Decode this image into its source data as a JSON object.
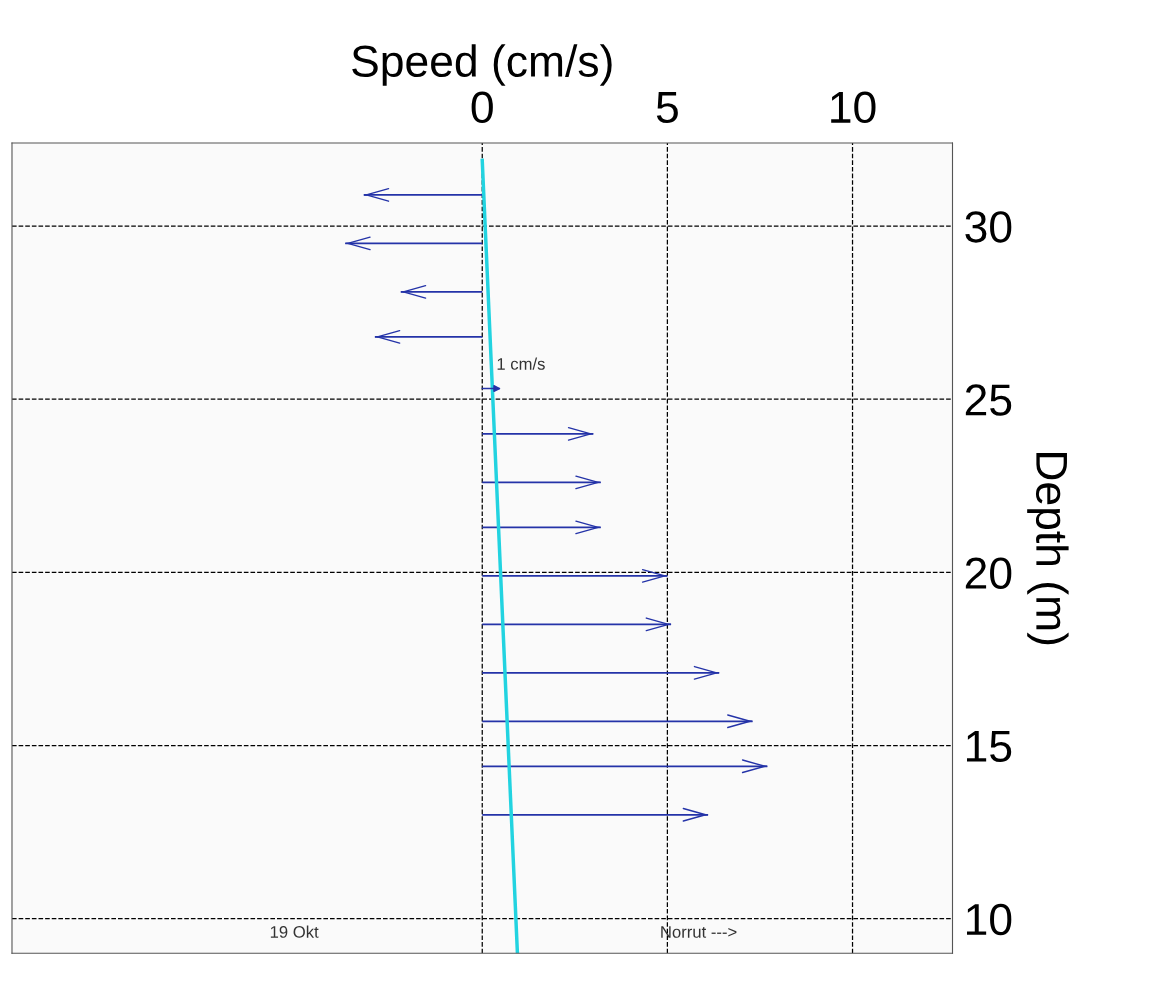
{
  "chart_data": {
    "type": "bar",
    "orientation": "horizontal",
    "xlabel": "Speed (cm/s)",
    "ylabel": "Depth (m)",
    "xlim": [
      -12.7,
      12.7
    ],
    "xticks": [
      0,
      5,
      10
    ],
    "ylim": [
      9.0,
      32.4
    ],
    "yticks": [
      10,
      15,
      20,
      25,
      30
    ],
    "grid": true,
    "series": [
      {
        "color": "#2433a8",
        "x": [
          30.9,
          29.5,
          28.1,
          26.8,
          24.0,
          22.6,
          21.3,
          19.9,
          18.5,
          17.1,
          15.7,
          14.4,
          13.0
        ],
        "values": [
          -3.2,
          -3.7,
          -2.2,
          -2.9,
          3.0,
          3.2,
          3.2,
          5.0,
          5.1,
          6.4,
          7.3,
          7.7,
          6.1
        ]
      },
      {
        "type": "line",
        "color": "#22d3e0",
        "x": [
          31.9,
          9.0
        ],
        "values": [
          0.0,
          0.95
        ]
      }
    ],
    "annotations": [
      "1 cm/s",
      "19 Okt",
      "Norrut --->"
    ]
  }
}
